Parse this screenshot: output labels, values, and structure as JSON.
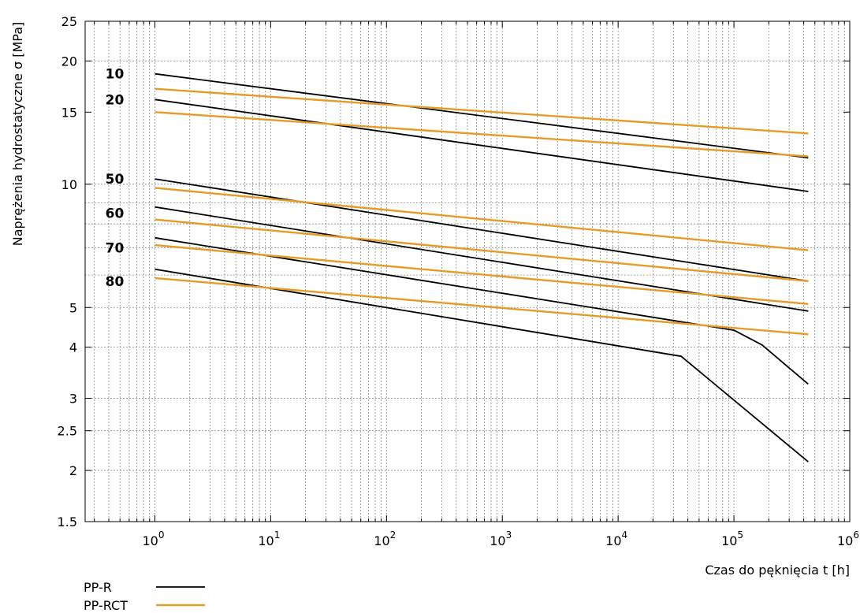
{
  "chart_data": {
    "type": "line",
    "title": "",
    "xlabel": "Czas do pęknięcia t [h]",
    "ylabel": "Naprężenia hydrostatyczne  σ  [MPa]",
    "x_scale": "log",
    "y_scale": "log",
    "xlim": [
      0.25,
      1000000
    ],
    "ylim": [
      1.5,
      25
    ],
    "grid": true,
    "x_ticks": [
      {
        "value": 1,
        "base": "10",
        "exp": "0"
      },
      {
        "value": 10,
        "base": "10",
        "exp": "1"
      },
      {
        "value": 100,
        "base": "10",
        "exp": "2"
      },
      {
        "value": 1000,
        "base": "10",
        "exp": "3"
      },
      {
        "value": 10000,
        "base": "10",
        "exp": "4"
      },
      {
        "value": 100000,
        "base": "10",
        "exp": "5"
      },
      {
        "value": 1000000,
        "base": "10",
        "exp": "6"
      }
    ],
    "y_ticks": [
      {
        "value": 1.5,
        "label": "1.5"
      },
      {
        "value": 2,
        "label": "2"
      },
      {
        "value": 2.5,
        "label": "2.5"
      },
      {
        "value": 3,
        "label": "3"
      },
      {
        "value": 4,
        "label": "4"
      },
      {
        "value": 5,
        "label": "5"
      },
      {
        "value": 10,
        "label": "10"
      },
      {
        "value": 15,
        "label": "15"
      },
      {
        "value": 20,
        "label": "20"
      },
      {
        "value": 25,
        "label": "25"
      }
    ],
    "temperature_labels": [
      {
        "text": "10",
        "x": 0.45,
        "y": 18.6
      },
      {
        "text": "20",
        "x": 0.45,
        "y": 16.1
      },
      {
        "text": "50",
        "x": 0.45,
        "y": 10.3
      },
      {
        "text": "60",
        "x": 0.45,
        "y": 8.5
      },
      {
        "text": "70",
        "x": 0.45,
        "y": 7.0
      },
      {
        "text": "80",
        "x": 0.45,
        "y": 5.8
      }
    ],
    "legend": {
      "placement": "bottom-left",
      "entries": [
        {
          "label": "PP-R",
          "color": "#000000"
        },
        {
          "label": "PP-RCT",
          "color": "#e69b27"
        }
      ]
    },
    "series": [
      {
        "material": "PP-R",
        "temperature": "10",
        "color": "#000000",
        "points": [
          [
            1,
            18.6
          ],
          [
            438000,
            11.6
          ]
        ]
      },
      {
        "material": "PP-R",
        "temperature": "20",
        "color": "#000000",
        "points": [
          [
            1,
            16.1
          ],
          [
            438000,
            9.6
          ]
        ]
      },
      {
        "material": "PP-R",
        "temperature": "50",
        "color": "#000000",
        "points": [
          [
            1,
            10.3
          ],
          [
            438000,
            5.8
          ]
        ]
      },
      {
        "material": "PP-R",
        "temperature": "60",
        "color": "#000000",
        "points": [
          [
            1,
            8.8
          ],
          [
            438000,
            4.9
          ]
        ]
      },
      {
        "material": "PP-R",
        "temperature": "70",
        "color": "#000000",
        "points": [
          [
            1,
            7.4
          ],
          [
            100000,
            4.4
          ],
          [
            175000,
            4.05
          ],
          [
            438000,
            3.25
          ]
        ]
      },
      {
        "material": "PP-R",
        "temperature": "80",
        "color": "#000000",
        "points": [
          [
            1,
            6.2
          ],
          [
            35000,
            3.8
          ],
          [
            438000,
            2.1
          ]
        ]
      },
      {
        "material": "PP-RCT",
        "temperature": "10",
        "color": "#e69b27",
        "points": [
          [
            1,
            17.1
          ],
          [
            438000,
            13.3
          ]
        ]
      },
      {
        "material": "PP-RCT",
        "temperature": "20",
        "color": "#e69b27",
        "points": [
          [
            1,
            15.0
          ],
          [
            438000,
            11.7
          ]
        ]
      },
      {
        "material": "PP-RCT",
        "temperature": "50",
        "color": "#e69b27",
        "points": [
          [
            1,
            9.8
          ],
          [
            438000,
            6.9
          ]
        ]
      },
      {
        "material": "PP-RCT",
        "temperature": "60",
        "color": "#e69b27",
        "points": [
          [
            1,
            8.2
          ],
          [
            438000,
            5.8
          ]
        ]
      },
      {
        "material": "PP-RCT",
        "temperature": "70",
        "color": "#e69b27",
        "points": [
          [
            1,
            7.1
          ],
          [
            438000,
            5.1
          ]
        ]
      },
      {
        "material": "PP-RCT",
        "temperature": "80",
        "color": "#e69b27",
        "points": [
          [
            1,
            5.9
          ],
          [
            438000,
            4.3
          ]
        ]
      }
    ]
  }
}
